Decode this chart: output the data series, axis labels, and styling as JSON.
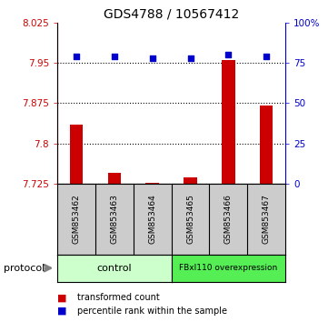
{
  "title": "GDS4788 / 10567412",
  "samples": [
    "GSM853462",
    "GSM853463",
    "GSM853464",
    "GSM853465",
    "GSM853466",
    "GSM853467"
  ],
  "red_values": [
    7.835,
    7.745,
    7.727,
    7.737,
    7.955,
    7.87
  ],
  "blue_values": [
    79,
    79,
    78,
    78,
    80,
    79
  ],
  "ylim_left": [
    7.725,
    8.025
  ],
  "ylim_right": [
    0,
    100
  ],
  "yticks_left": [
    7.725,
    7.8,
    7.875,
    7.95,
    8.025
  ],
  "yticks_right": [
    0,
    25,
    50,
    75,
    100
  ],
  "ytick_labels_left": [
    "7.725",
    "7.8",
    "7.875",
    "7.95",
    "8.025"
  ],
  "ytick_labels_right": [
    "0",
    "25",
    "50",
    "75",
    "100%"
  ],
  "hlines": [
    7.95,
    7.875,
    7.8
  ],
  "control_label": "control",
  "overexpression_label": "FBxl110 overexpression",
  "protocol_label": "protocol",
  "legend_red": "transformed count",
  "legend_blue": "percentile rank within the sample",
  "bar_color": "#CC0000",
  "blue_color": "#0000CC",
  "control_bg": "#CCFFCC",
  "overexpression_bg": "#55EE55",
  "sample_box_bg": "#CCCCCC",
  "bar_bottom": 7.725,
  "bar_width": 0.35,
  "blue_marker_size": 25,
  "n_control": 3,
  "n_overexp": 3
}
